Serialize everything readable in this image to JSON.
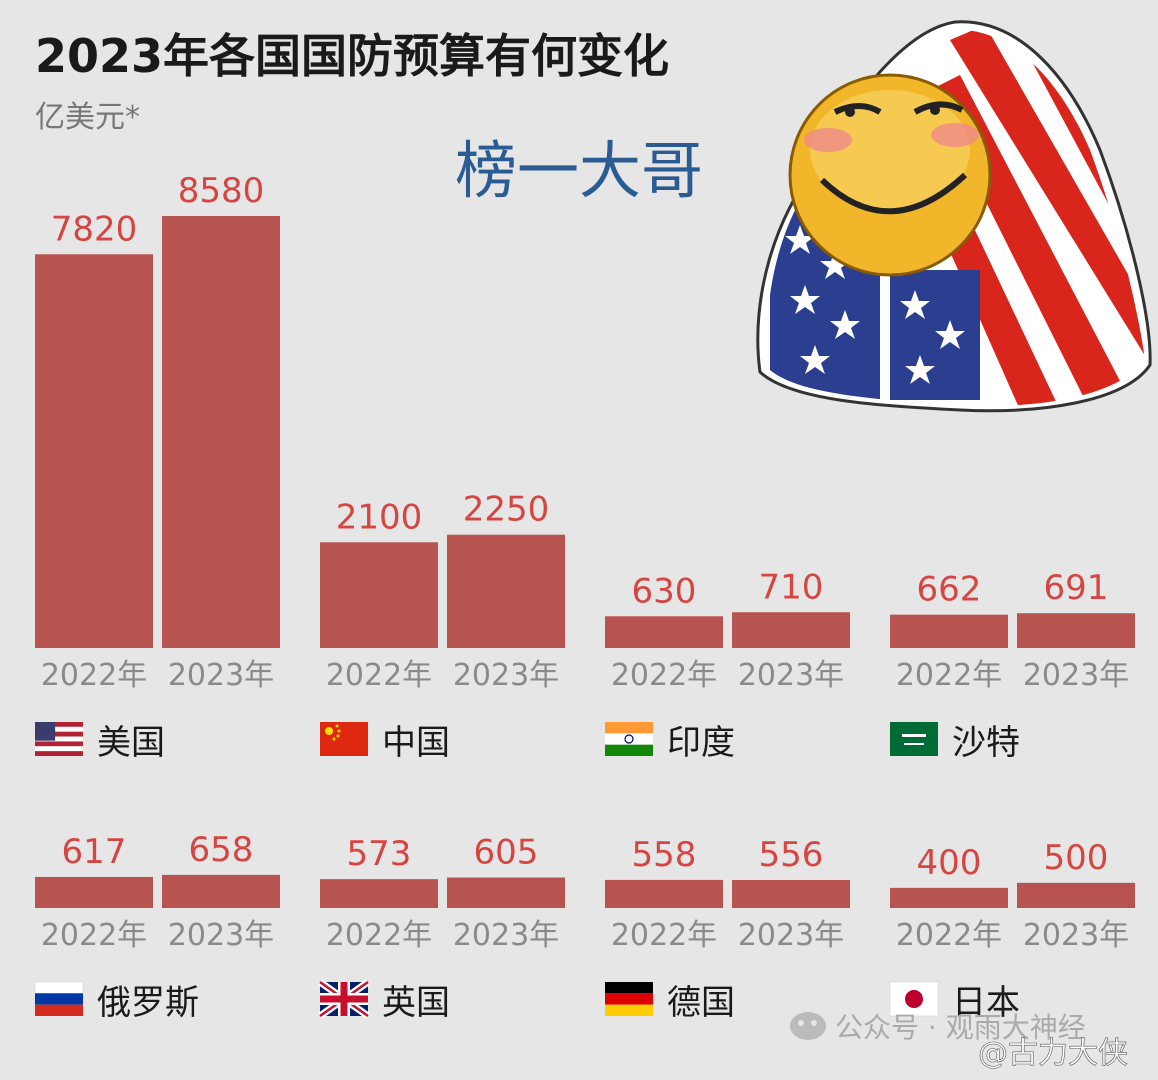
{
  "title": "2023年各国国防预算有何变化",
  "unit": "亿美元*",
  "annotation": "榜一大哥",
  "watermark_wechat": "公众号 · 观雨大神经",
  "watermark_weibo": "@古力大侠",
  "colors": {
    "bar": "#b85450",
    "value": "#d64541",
    "year": "#8a8a8a",
    "bg": "#e6e6e6"
  },
  "chart_data": {
    "type": "bar",
    "title": "2023年各国国防预算有何变化",
    "ylabel": "亿美元*",
    "x": [
      "2022年",
      "2023年"
    ],
    "groups": [
      {
        "country": "美国",
        "flag": "us-flag-icon",
        "values": [
          7820,
          8580
        ]
      },
      {
        "country": "中国",
        "flag": "cn-flag-icon",
        "values": [
          2100,
          2250
        ]
      },
      {
        "country": "印度",
        "flag": "in-flag-icon",
        "values": [
          630,
          710
        ]
      },
      {
        "country": "沙特",
        "flag": "sa-flag-icon",
        "values": [
          662,
          691
        ]
      },
      {
        "country": "俄罗斯",
        "flag": "ru-flag-icon",
        "values": [
          617,
          658
        ]
      },
      {
        "country": "英国",
        "flag": "uk-flag-icon",
        "values": [
          573,
          605
        ]
      },
      {
        "country": "德国",
        "flag": "de-flag-icon",
        "values": [
          558,
          556
        ]
      },
      {
        "country": "日本",
        "flag": "jp-flag-icon",
        "values": [
          400,
          500
        ]
      }
    ]
  }
}
